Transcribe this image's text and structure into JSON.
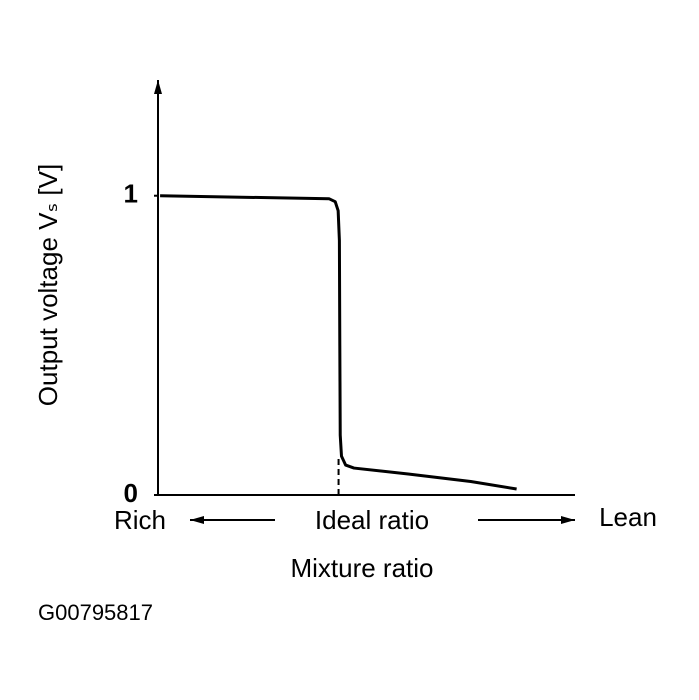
{
  "chart_data": {
    "type": "line",
    "y_label": "Output voltage Vₛ [V]",
    "x_label": "Mixture ratio",
    "left_label": "Rich",
    "center_label": "Ideal ratio",
    "right_label": "Lean",
    "figure_code": "G00795817",
    "x": [
      0.005,
      0.2,
      0.41,
      0.425,
      0.432,
      0.435,
      0.436,
      0.437,
      0.44,
      0.45,
      0.47,
      0.6,
      0.75,
      0.86
    ],
    "series": [
      {
        "name": "Output voltage",
        "color": "#000000",
        "values": [
          1.0,
          0.995,
          0.99,
          0.98,
          0.95,
          0.85,
          0.5,
          0.2,
          0.13,
          0.1,
          0.09,
          0.07,
          0.045,
          0.02
        ]
      }
    ],
    "ideal_x": 0.433,
    "xlim": [
      0,
      1
    ],
    "ylim": [
      0,
      1.4
    ],
    "yticks": [
      0,
      1
    ]
  }
}
